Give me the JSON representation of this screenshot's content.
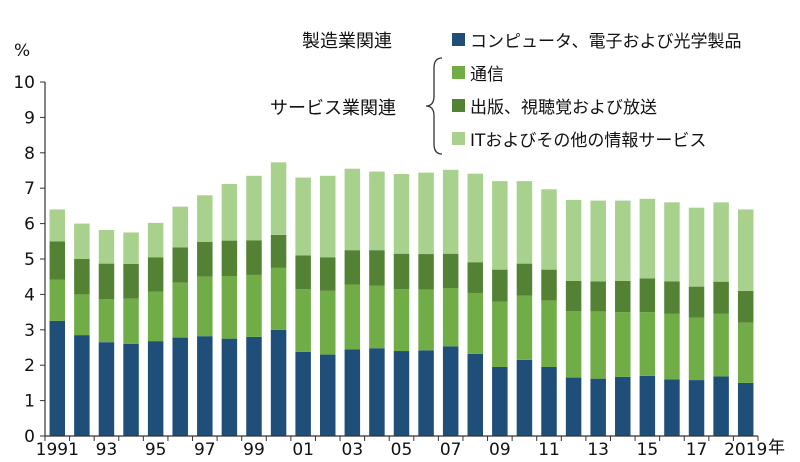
{
  "chart_data": {
    "type": "bar",
    "stacked": true,
    "ylabel": "%",
    "xlabel": "年",
    "ylim": [
      0,
      10
    ],
    "yticks": [
      "0",
      "1",
      "2",
      "3",
      "4",
      "5",
      "6",
      "7",
      "8",
      "9",
      "10"
    ],
    "xtick_labels": [
      "1991",
      "93",
      "95",
      "97",
      "99",
      "01",
      "03",
      "05",
      "07",
      "09",
      "11",
      "13",
      "15",
      "17",
      "2019"
    ],
    "categories": [
      1991,
      1992,
      1993,
      1994,
      1995,
      1996,
      1997,
      1998,
      1999,
      2000,
      2001,
      2002,
      2003,
      2004,
      2005,
      2006,
      2007,
      2008,
      2009,
      2010,
      2011,
      2012,
      2013,
      2014,
      2015,
      2016,
      2017,
      2018,
      2019
    ],
    "group_labels": {
      "manufacturing": "製造業関連",
      "services": "サービス業関連"
    },
    "series": [
      {
        "name": "コンピュータ、電子および光学製品",
        "color": "#1f4e79",
        "values": [
          3.25,
          2.85,
          2.65,
          2.6,
          2.68,
          2.78,
          2.82,
          2.75,
          2.8,
          3.0,
          2.38,
          2.3,
          2.45,
          2.48,
          2.4,
          2.42,
          2.53,
          2.32,
          1.95,
          2.15,
          1.95,
          1.65,
          1.62,
          1.67,
          1.7,
          1.6,
          1.58,
          1.68,
          1.5
        ]
      },
      {
        "name": "通信",
        "color": "#70ad47",
        "values": [
          1.17,
          1.15,
          1.22,
          1.28,
          1.4,
          1.55,
          1.68,
          1.77,
          1.75,
          1.75,
          1.77,
          1.8,
          1.83,
          1.77,
          1.75,
          1.72,
          1.65,
          1.72,
          1.85,
          1.82,
          1.88,
          1.88,
          1.9,
          1.83,
          1.8,
          1.85,
          1.76,
          1.78,
          1.7
        ]
      },
      {
        "name": "出版、視聴覚および放送",
        "color": "#548235",
        "values": [
          1.08,
          1.0,
          1.0,
          0.98,
          0.97,
          1.0,
          0.98,
          1.0,
          0.98,
          0.93,
          0.95,
          0.95,
          0.97,
          1.0,
          1.0,
          1.0,
          0.97,
          0.87,
          0.9,
          0.9,
          0.87,
          0.85,
          0.85,
          0.88,
          0.95,
          0.92,
          0.88,
          0.9,
          0.9
        ]
      },
      {
        "name": "ITおよびその他の情報サービス",
        "color": "#a9d18e",
        "values": [
          0.9,
          1.0,
          0.95,
          0.89,
          0.97,
          1.15,
          1.32,
          1.6,
          1.82,
          2.05,
          2.2,
          2.3,
          2.3,
          2.22,
          2.25,
          2.3,
          2.37,
          2.5,
          2.5,
          2.33,
          2.27,
          2.29,
          2.28,
          2.27,
          2.25,
          2.23,
          2.23,
          2.24,
          2.3
        ]
      }
    ]
  }
}
